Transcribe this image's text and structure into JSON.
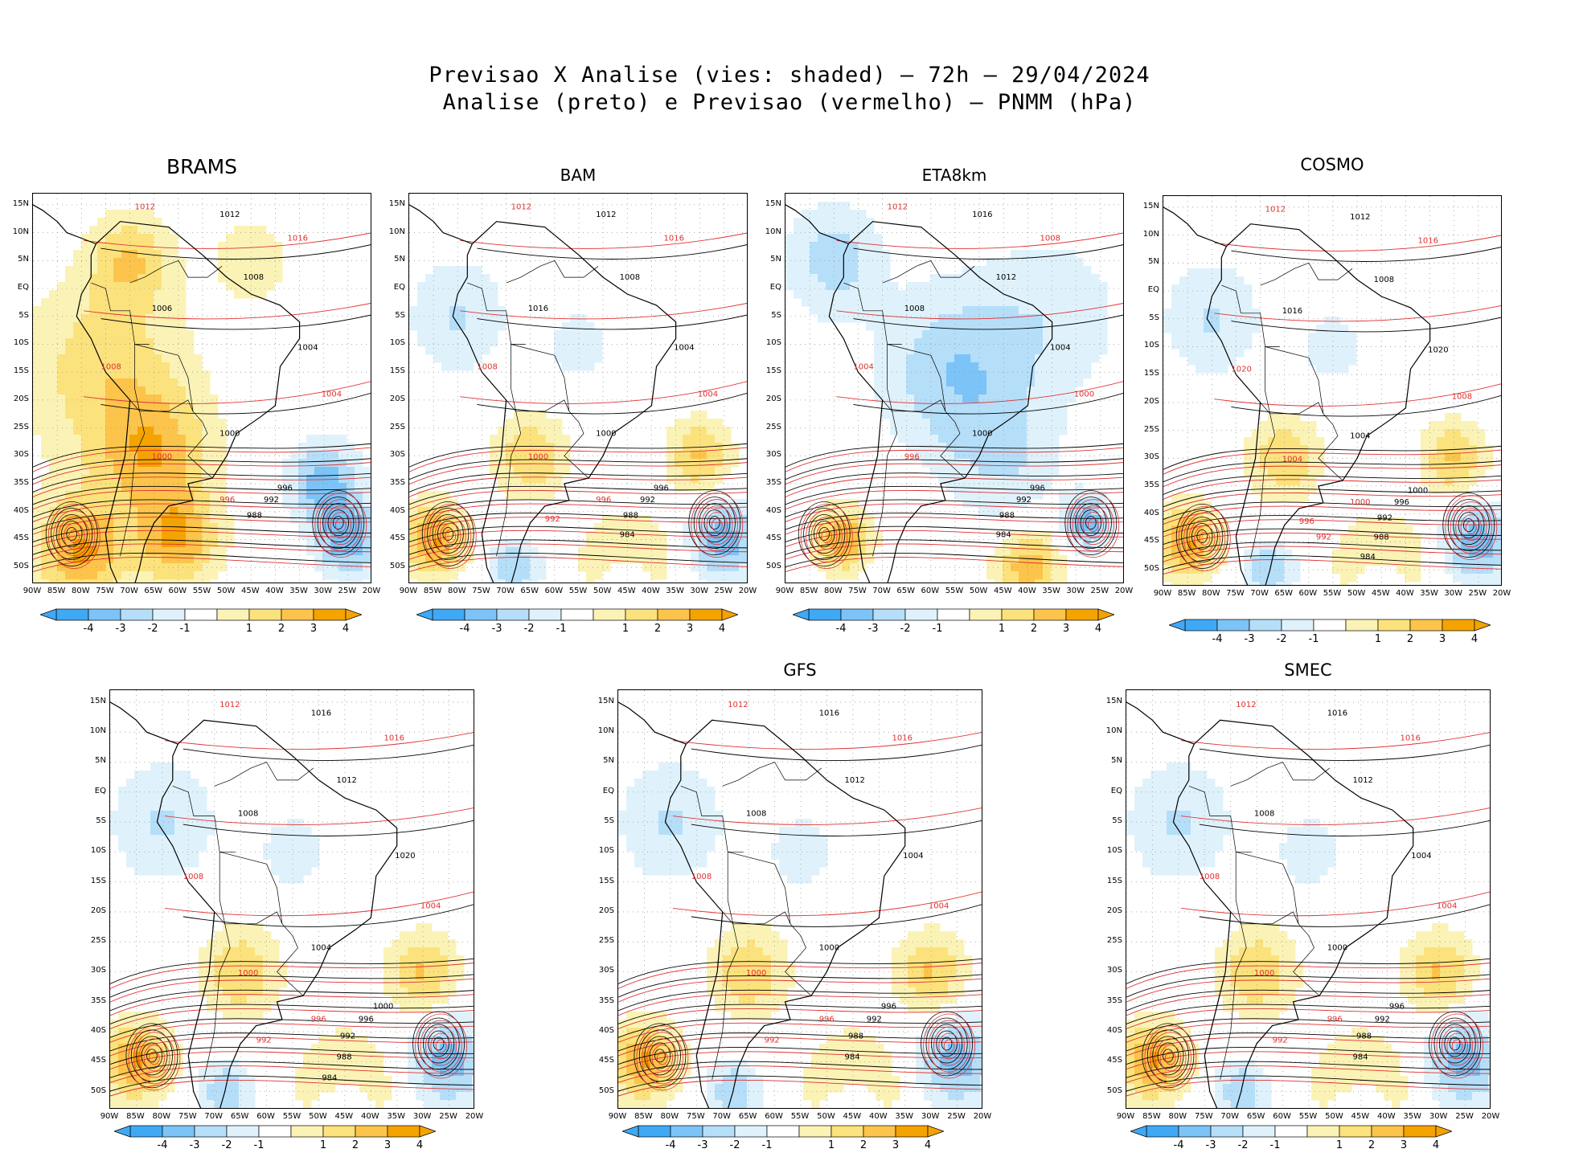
{
  "figure": {
    "title_line1": "Previsao X Analise (vies: shaded) — 72h — 29/04/2024",
    "title_line2": "Analise (preto) e Previsao (vermelho) — PNMM (hPa)"
  },
  "colors": {
    "neg4": "#3fa9f5",
    "neg3": "#7cc3f7",
    "neg2": "#b5def9",
    "neg1": "#dff2fc",
    "zero": "#ffffff",
    "pos1": "#fbf3b6",
    "pos2": "#fce27c",
    "pos3": "#fcc44a",
    "pos4": "#f5a300",
    "analysis_line": "#000000",
    "forecast_line": "#e03030",
    "grid": "#9a9a9a"
  },
  "axes": {
    "lat_labels": [
      "15N",
      "10N",
      "5N",
      "EQ",
      "5S",
      "10S",
      "15S",
      "20S",
      "25S",
      "30S",
      "35S",
      "40S",
      "45S",
      "50S"
    ],
    "lon_labels": [
      "90W",
      "85W",
      "80W",
      "75W",
      "70W",
      "65W",
      "60W",
      "55W",
      "50W",
      "45W",
      "40W",
      "35W",
      "30W",
      "25W",
      "20W"
    ]
  },
  "colorbar": {
    "ticks": [
      "-4",
      "-3",
      "-2",
      "-1",
      "1",
      "2",
      "3",
      "4"
    ]
  },
  "panels": [
    {
      "id": "brams",
      "title": "BRAMS",
      "bias": "positive",
      "labels_black": [
        "1012",
        "1008",
        "1006",
        "1004",
        "1000",
        "996",
        "992",
        "988"
      ],
      "labels_red": [
        "1012",
        "1016",
        "1008",
        "1004",
        "1000",
        "996"
      ]
    },
    {
      "id": "bam",
      "title": "BAM",
      "bias": "mixed",
      "labels_black": [
        "1012",
        "1008",
        "1016",
        "1004",
        "1000",
        "996",
        "992",
        "988",
        "984"
      ],
      "labels_red": [
        "1012",
        "1016",
        "1008",
        "1004",
        "1000",
        "996",
        "992"
      ]
    },
    {
      "id": "eta8km",
      "title": "ETA8km",
      "bias": "negative",
      "labels_black": [
        "1016",
        "1012",
        "1008",
        "1004",
        "1000",
        "996",
        "992",
        "988",
        "984"
      ],
      "labels_red": [
        "1012",
        "1008",
        "1004",
        "1000",
        "996"
      ]
    },
    {
      "id": "cosmo",
      "title": "COSMO",
      "bias": "mixed",
      "labels_black": [
        "1012",
        "1008",
        "1016",
        "1020",
        "1004",
        "1000",
        "996",
        "992",
        "988",
        "984"
      ],
      "labels_red": [
        "1012",
        "1016",
        "1020",
        "1008",
        "1004",
        "1000",
        "996",
        "992"
      ]
    },
    {
      "id": "panel5",
      "title": "",
      "bias": "mixed",
      "labels_black": [
        "1016",
        "1012",
        "1008",
        "1020",
        "1004",
        "1000",
        "996",
        "992",
        "988",
        "984"
      ],
      "labels_red": [
        "1012",
        "1016",
        "1008",
        "1004",
        "1000",
        "996",
        "992"
      ]
    },
    {
      "id": "gfs",
      "title": "GFS",
      "bias": "mixed",
      "labels_black": [
        "1016",
        "1012",
        "1008",
        "1004",
        "1000",
        "996",
        "992",
        "988",
        "984"
      ],
      "labels_red": [
        "1012",
        "1016",
        "1008",
        "1004",
        "1000",
        "996",
        "992"
      ]
    },
    {
      "id": "smec",
      "title": "SMEC",
      "bias": "mixed",
      "labels_black": [
        "1016",
        "1012",
        "1008",
        "1004",
        "1000",
        "996",
        "992",
        "988",
        "984"
      ],
      "labels_red": [
        "1012",
        "1016",
        "1008",
        "1004",
        "1000",
        "996",
        "992"
      ]
    }
  ]
}
